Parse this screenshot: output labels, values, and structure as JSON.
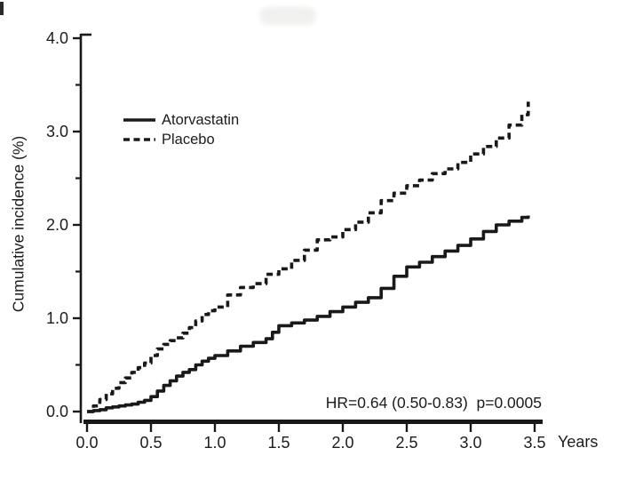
{
  "figure": {
    "background_color": "#ffffff",
    "ink_color": "#191919"
  },
  "chart_data": {
    "type": "line",
    "subtype": "cumulative-incidence-step-curves",
    "title": "",
    "xlabel": "Years",
    "ylabel": "Cumulative incidence (%)",
    "xlim": [
      0,
      3.5
    ],
    "ylim": [
      0,
      4.0
    ],
    "grid": false,
    "x_ticks": {
      "values": [
        0,
        0.5,
        1,
        1.5,
        2,
        2.5,
        3,
        3.5
      ],
      "labels": [
        "0.0",
        "0.5",
        "1.0",
        "1.5",
        "2.0",
        "2.5",
        "3.0",
        "3.5"
      ]
    },
    "y_ticks": {
      "values": [
        0,
        1,
        2,
        3,
        4
      ],
      "labels": [
        "0.0",
        "1.0",
        "2.0",
        "3.0",
        "4.0"
      ],
      "minor": [
        0.5,
        1.5,
        2.5,
        3.5
      ]
    },
    "legend": {
      "position": "inside-upper-left",
      "entries": [
        {
          "label": "Atorvastatin",
          "line_style": "solid"
        },
        {
          "label": "Placebo",
          "line_style": "dashed"
        }
      ]
    },
    "annotation": {
      "text": "HR=0.64 (0.50-0.83)  p=0.0005",
      "position": "above-x-axis-right"
    },
    "series": [
      {
        "label": "Atorvastatin",
        "line_style": "solid",
        "interpolation": "step-after",
        "x": [
          0,
          0.05,
          0.1,
          0.15,
          0.2,
          0.25,
          0.3,
          0.35,
          0.4,
          0.45,
          0.5,
          0.55,
          0.6,
          0.65,
          0.7,
          0.75,
          0.8,
          0.85,
          0.9,
          0.95,
          1.0,
          1.1,
          1.2,
          1.3,
          1.4,
          1.45,
          1.5,
          1.6,
          1.7,
          1.8,
          1.9,
          2.0,
          2.1,
          2.2,
          2.3,
          2.4,
          2.5,
          2.6,
          2.7,
          2.8,
          2.9,
          3.0,
          3.1,
          3.2,
          3.3,
          3.4,
          3.45
        ],
        "y": [
          0,
          0.01,
          0.02,
          0.04,
          0.05,
          0.06,
          0.07,
          0.08,
          0.1,
          0.12,
          0.16,
          0.22,
          0.28,
          0.33,
          0.38,
          0.42,
          0.45,
          0.5,
          0.54,
          0.57,
          0.6,
          0.65,
          0.7,
          0.74,
          0.78,
          0.85,
          0.92,
          0.95,
          0.98,
          1.02,
          1.07,
          1.12,
          1.17,
          1.22,
          1.32,
          1.45,
          1.55,
          1.6,
          1.66,
          1.72,
          1.78,
          1.85,
          1.93,
          2.0,
          2.04,
          2.08,
          2.1
        ]
      },
      {
        "label": "Placebo",
        "line_style": "dashed",
        "interpolation": "step-after",
        "x": [
          0,
          0.05,
          0.1,
          0.15,
          0.2,
          0.25,
          0.3,
          0.35,
          0.4,
          0.45,
          0.5,
          0.55,
          0.6,
          0.65,
          0.7,
          0.75,
          0.8,
          0.85,
          0.9,
          0.95,
          1.0,
          1.1,
          1.2,
          1.3,
          1.4,
          1.5,
          1.6,
          1.7,
          1.8,
          1.9,
          2.0,
          2.1,
          2.2,
          2.3,
          2.4,
          2.5,
          2.6,
          2.7,
          2.8,
          2.9,
          3.0,
          3.1,
          3.2,
          3.3,
          3.4,
          3.45
        ],
        "y": [
          0,
          0.06,
          0.13,
          0.19,
          0.25,
          0.31,
          0.36,
          0.42,
          0.47,
          0.52,
          0.6,
          0.67,
          0.72,
          0.76,
          0.79,
          0.84,
          0.9,
          0.97,
          1.04,
          1.08,
          1.12,
          1.25,
          1.33,
          1.37,
          1.47,
          1.53,
          1.62,
          1.73,
          1.84,
          1.87,
          1.95,
          2.03,
          2.13,
          2.26,
          2.34,
          2.42,
          2.48,
          2.55,
          2.6,
          2.67,
          2.76,
          2.84,
          2.93,
          3.07,
          3.18,
          3.32
        ]
      }
    ]
  }
}
